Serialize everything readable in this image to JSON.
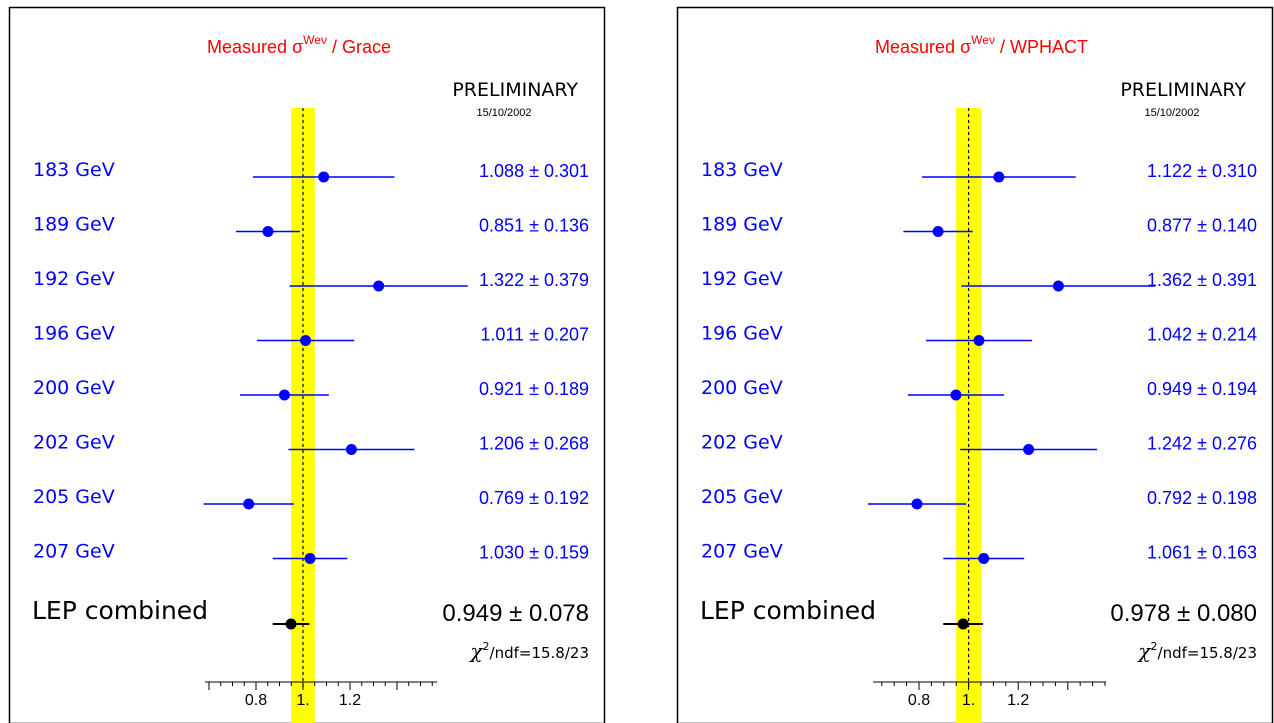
{
  "chart_data": [
    {
      "type": "scatter",
      "title": "Measured σ",
      "title_sup": "Weν",
      "title_suffix": " / Grace",
      "status": "PRELIMINARY",
      "date": "15/10/2002",
      "ticks": [
        "0.8",
        "1.",
        "1.2"
      ],
      "points": [
        {
          "label": "183 GeV",
          "value": 1.088,
          "error": 0.301,
          "text": "1.088 ± 0.301"
        },
        {
          "label": "189 GeV",
          "value": 0.851,
          "error": 0.136,
          "text": "0.851 ± 0.136"
        },
        {
          "label": "192 GeV",
          "value": 1.322,
          "error": 0.379,
          "text": "1.322 ± 0.379"
        },
        {
          "label": "196 GeV",
          "value": 1.011,
          "error": 0.207,
          "text": "1.011 ± 0.207"
        },
        {
          "label": "200 GeV",
          "value": 0.921,
          "error": 0.189,
          "text": "0.921 ± 0.189"
        },
        {
          "label": "202 GeV",
          "value": 1.206,
          "error": 0.268,
          "text": "1.206 ± 0.268"
        },
        {
          "label": "205 GeV",
          "value": 0.769,
          "error": 0.192,
          "text": "0.769 ± 0.192"
        },
        {
          "label": "207 GeV",
          "value": 1.03,
          "error": 0.159,
          "text": "1.030 ± 0.159"
        }
      ],
      "combined": {
        "label": "LEP combined",
        "value": 0.949,
        "error": 0.078,
        "text": "0.949 ± 0.078"
      },
      "chi2_symbol": "χ",
      "chi2_sup": "2",
      "chi2_text": "/ndf=15.8/23",
      "band": {
        "center": 1.0,
        "half_width": 0.05
      }
    },
    {
      "type": "scatter",
      "title": "Measured σ",
      "title_sup": "Weν",
      "title_suffix": " / WPHACT",
      "status": "PRELIMINARY",
      "date": "15/10/2002",
      "ticks": [
        "0.8",
        "1.",
        "1.2"
      ],
      "points": [
        {
          "label": "183 GeV",
          "value": 1.122,
          "error": 0.31,
          "text": "1.122 ± 0.310"
        },
        {
          "label": "189 GeV",
          "value": 0.877,
          "error": 0.14,
          "text": "0.877 ± 0.140"
        },
        {
          "label": "192 GeV",
          "value": 1.362,
          "error": 0.391,
          "text": "1.362 ± 0.391"
        },
        {
          "label": "196 GeV",
          "value": 1.042,
          "error": 0.214,
          "text": "1.042 ± 0.214"
        },
        {
          "label": "200 GeV",
          "value": 0.949,
          "error": 0.194,
          "text": "0.949 ± 0.194"
        },
        {
          "label": "202 GeV",
          "value": 1.242,
          "error": 0.276,
          "text": "1.242 ± 0.276"
        },
        {
          "label": "205 GeV",
          "value": 0.792,
          "error": 0.198,
          "text": "0.792 ± 0.198"
        },
        {
          "label": "207 GeV",
          "value": 1.061,
          "error": 0.163,
          "text": "1.061 ± 0.163"
        }
      ],
      "combined": {
        "label": "LEP combined",
        "value": 0.978,
        "error": 0.08,
        "text": "0.978 ± 0.080"
      },
      "chi2_symbol": "χ",
      "chi2_sup": "2",
      "chi2_text": "/ndf=15.8/23",
      "band": {
        "center": 1.0,
        "half_width": 0.05
      }
    }
  ],
  "colors": {
    "band": "#ffff00",
    "points": "#0000ff",
    "combined": "#000000",
    "title": "#ff0000"
  }
}
